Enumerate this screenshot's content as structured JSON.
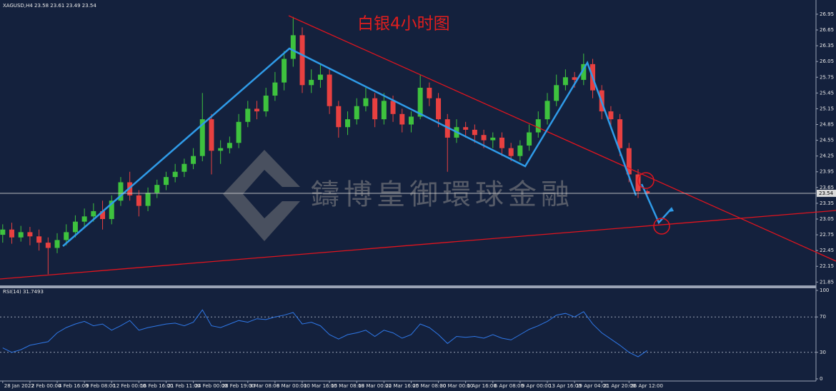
{
  "chart_data": {
    "type": "candlestick",
    "header": "XAGUSD,H4  23.58 23.61 23.49 23.54",
    "title": "白银4小时图",
    "watermark": "鑄博皇御環球金融",
    "up_color": "#3ec23e",
    "down_color": "#e84040",
    "series": [
      {
        "open": [
          22.75,
          22.85,
          22.7,
          22.8,
          22.72,
          22.6,
          22.5,
          22.65,
          22.8,
          23.0,
          23.1,
          23.2,
          23.05,
          23.4,
          23.75,
          23.5,
          23.3,
          23.55,
          23.7,
          23.85,
          23.95,
          24.1,
          24.25,
          24.95,
          24.35,
          24.4,
          24.5,
          24.9,
          25.15,
          25.1,
          25.4,
          25.65,
          26.1,
          26.55,
          25.6,
          25.7,
          25.8,
          25.2,
          24.8,
          24.95,
          25.2,
          25.35,
          24.95,
          25.3,
          25.05,
          24.85,
          25.0,
          25.55,
          25.35,
          24.95,
          24.6,
          24.8,
          24.75,
          24.65,
          24.55,
          24.6,
          24.4,
          24.25,
          24.45,
          24.7,
          24.95,
          25.3,
          25.6,
          25.75,
          25.7,
          26.0,
          25.5,
          25.1,
          24.95,
          24.4,
          23.9,
          23.58
        ],
        "high": [
          22.95,
          22.98,
          22.92,
          22.9,
          22.85,
          22.7,
          22.78,
          22.95,
          23.12,
          23.25,
          23.35,
          23.4,
          23.5,
          23.85,
          23.95,
          23.6,
          23.65,
          23.8,
          23.95,
          24.1,
          24.2,
          24.4,
          25.45,
          25.05,
          24.55,
          24.62,
          25.05,
          25.3,
          25.3,
          25.55,
          25.85,
          26.25,
          26.9,
          26.7,
          25.9,
          26.0,
          25.9,
          25.3,
          25.1,
          25.35,
          25.55,
          25.45,
          25.45,
          25.4,
          25.15,
          25.1,
          25.8,
          25.65,
          25.45,
          25.05,
          24.95,
          24.9,
          24.85,
          24.75,
          24.7,
          24.7,
          24.5,
          24.55,
          24.85,
          25.1,
          25.45,
          25.8,
          25.9,
          25.85,
          26.2,
          26.1,
          25.6,
          25.2,
          25.05,
          24.5,
          24.0,
          23.61
        ],
        "low": [
          22.6,
          22.58,
          22.62,
          22.55,
          22.45,
          22.0,
          22.4,
          22.55,
          22.7,
          22.9,
          23.0,
          22.85,
          22.95,
          23.3,
          23.4,
          23.1,
          23.2,
          23.45,
          23.6,
          23.75,
          23.85,
          24.0,
          24.15,
          23.9,
          24.1,
          24.3,
          24.4,
          24.8,
          24.95,
          25.0,
          25.3,
          25.5,
          25.95,
          25.45,
          25.45,
          25.55,
          25.05,
          24.6,
          24.65,
          24.85,
          25.1,
          24.8,
          24.85,
          24.9,
          24.7,
          24.7,
          24.95,
          25.2,
          24.8,
          23.95,
          24.5,
          24.6,
          24.5,
          24.4,
          24.4,
          24.25,
          24.15,
          24.15,
          24.35,
          24.6,
          24.85,
          25.2,
          25.5,
          25.55,
          25.6,
          25.35,
          24.95,
          24.8,
          24.25,
          23.75,
          23.45,
          23.49
        ],
        "close": [
          22.85,
          22.7,
          22.8,
          22.72,
          22.6,
          22.5,
          22.65,
          22.8,
          23.0,
          23.1,
          23.2,
          23.05,
          23.4,
          23.75,
          23.5,
          23.3,
          23.55,
          23.7,
          23.85,
          23.95,
          24.1,
          24.25,
          24.95,
          24.35,
          24.4,
          24.5,
          24.9,
          25.15,
          25.1,
          25.4,
          25.65,
          26.1,
          26.55,
          25.6,
          25.7,
          25.8,
          25.2,
          24.8,
          24.95,
          25.2,
          25.35,
          24.95,
          25.3,
          25.05,
          24.85,
          25.0,
          25.55,
          25.35,
          24.95,
          24.6,
          24.8,
          24.75,
          24.65,
          24.55,
          24.6,
          24.4,
          24.25,
          24.45,
          24.7,
          24.95,
          25.3,
          25.6,
          25.75,
          25.7,
          26.0,
          25.5,
          25.1,
          24.95,
          24.4,
          23.9,
          23.58,
          23.54
        ]
      }
    ],
    "xlim": [
      -0.3,
      89.6
    ],
    "xticks": [
      {
        "value": 0,
        "label": "28 Jan 2022"
      },
      {
        "value": 3,
        "label": "2 Feb 00:00"
      },
      {
        "value": 6,
        "label": "4 Feb 16:00"
      },
      {
        "value": 9,
        "label": "9 Feb 08:00"
      },
      {
        "value": 12,
        "label": "12 Feb 00:00"
      },
      {
        "value": 15,
        "label": "16 Feb 16:00"
      },
      {
        "value": 18,
        "label": "21 Feb 11:00"
      },
      {
        "value": 21,
        "label": "24 Feb 00:00"
      },
      {
        "value": 24,
        "label": "28 Feb 19:00"
      },
      {
        "value": 27,
        "label": "3 Mar 08:00"
      },
      {
        "value": 30,
        "label": "8 Mar 00:00"
      },
      {
        "value": 33,
        "label": "10 Mar 16:00"
      },
      {
        "value": 36,
        "label": "15 Mar 08:00"
      },
      {
        "value": 39,
        "label": "18 Mar 00:00"
      },
      {
        "value": 42,
        "label": "22 Mar 16:00"
      },
      {
        "value": 45,
        "label": "25 Mar 08:00"
      },
      {
        "value": 48,
        "label": "30 Mar 00:00"
      },
      {
        "value": 51,
        "label": "1 Apr 16:00"
      },
      {
        "value": 54,
        "label": "6 Apr 08:00"
      },
      {
        "value": 57,
        "label": "9 Apr 00:00"
      },
      {
        "value": 60,
        "label": "13 Apr 16:00"
      },
      {
        "value": 63,
        "label": "19 Apr 04:00"
      },
      {
        "value": 66,
        "label": "21 Apr 20:00"
      },
      {
        "value": 69,
        "label": "26 Apr 12:00"
      }
    ],
    "ylim": [
      21.8,
      27.18
    ],
    "yticks": [
      26.95,
      26.65,
      26.35,
      26.05,
      25.75,
      25.45,
      25.15,
      24.85,
      24.55,
      24.25,
      23.95,
      23.65,
      23.35,
      23.05,
      22.75,
      22.45,
      22.15,
      21.85
    ],
    "rsi": {
      "label": "RSI(14) 31.7493",
      "color": "#2f78e8",
      "values": [
        35,
        30,
        33,
        38,
        40,
        42,
        52,
        58,
        62,
        65,
        60,
        62,
        55,
        60,
        66,
        55,
        58,
        60,
        62,
        63,
        60,
        64,
        78,
        60,
        58,
        62,
        66,
        64,
        68,
        67,
        70,
        72,
        75,
        62,
        64,
        60,
        50,
        45,
        50,
        52,
        55,
        48,
        55,
        52,
        46,
        50,
        62,
        58,
        50,
        40,
        48,
        47,
        48,
        46,
        50,
        46,
        44,
        50,
        56,
        60,
        65,
        72,
        74,
        70,
        76,
        62,
        52,
        45,
        38,
        30,
        25,
        32
      ],
      "ylim": [
        0,
        100
      ],
      "yticks": [
        100,
        70,
        30,
        0
      ],
      "levels": [
        70,
        30
      ]
    }
  }
}
